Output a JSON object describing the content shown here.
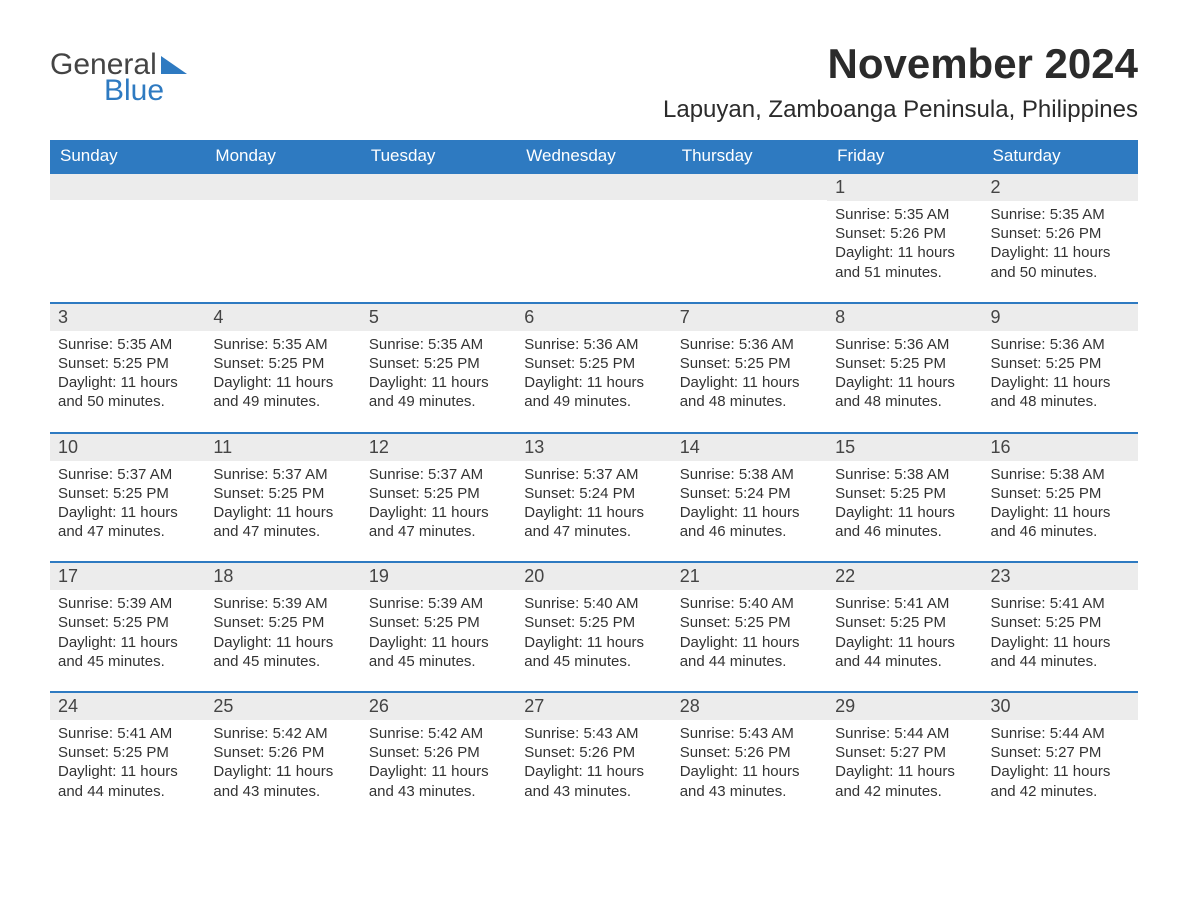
{
  "logo": {
    "text_top": "General",
    "text_bottom": "Blue",
    "brand_color": "#2e7ac1"
  },
  "header": {
    "month_title": "November 2024",
    "location": "Lapuyan, Zamboanga Peninsula, Philippines"
  },
  "calendar": {
    "header_bg": "#2e7ac1",
    "header_text_color": "#ffffff",
    "daynum_bg": "#ececec",
    "rule_color": "#2e7ac1",
    "text_color": "#333333",
    "body_fontsize": 15,
    "header_fontsize": 17,
    "title_fontsize": 42,
    "location_fontsize": 24,
    "days_of_week": [
      "Sunday",
      "Monday",
      "Tuesday",
      "Wednesday",
      "Thursday",
      "Friday",
      "Saturday"
    ],
    "weeks": [
      [
        {
          "day": null
        },
        {
          "day": null
        },
        {
          "day": null
        },
        {
          "day": null
        },
        {
          "day": null
        },
        {
          "day": 1,
          "sunrise": "5:35 AM",
          "sunset": "5:26 PM",
          "daylight": "11 hours and 51 minutes."
        },
        {
          "day": 2,
          "sunrise": "5:35 AM",
          "sunset": "5:26 PM",
          "daylight": "11 hours and 50 minutes."
        }
      ],
      [
        {
          "day": 3,
          "sunrise": "5:35 AM",
          "sunset": "5:25 PM",
          "daylight": "11 hours and 50 minutes."
        },
        {
          "day": 4,
          "sunrise": "5:35 AM",
          "sunset": "5:25 PM",
          "daylight": "11 hours and 49 minutes."
        },
        {
          "day": 5,
          "sunrise": "5:35 AM",
          "sunset": "5:25 PM",
          "daylight": "11 hours and 49 minutes."
        },
        {
          "day": 6,
          "sunrise": "5:36 AM",
          "sunset": "5:25 PM",
          "daylight": "11 hours and 49 minutes."
        },
        {
          "day": 7,
          "sunrise": "5:36 AM",
          "sunset": "5:25 PM",
          "daylight": "11 hours and 48 minutes."
        },
        {
          "day": 8,
          "sunrise": "5:36 AM",
          "sunset": "5:25 PM",
          "daylight": "11 hours and 48 minutes."
        },
        {
          "day": 9,
          "sunrise": "5:36 AM",
          "sunset": "5:25 PM",
          "daylight": "11 hours and 48 minutes."
        }
      ],
      [
        {
          "day": 10,
          "sunrise": "5:37 AM",
          "sunset": "5:25 PM",
          "daylight": "11 hours and 47 minutes."
        },
        {
          "day": 11,
          "sunrise": "5:37 AM",
          "sunset": "5:25 PM",
          "daylight": "11 hours and 47 minutes."
        },
        {
          "day": 12,
          "sunrise": "5:37 AM",
          "sunset": "5:25 PM",
          "daylight": "11 hours and 47 minutes."
        },
        {
          "day": 13,
          "sunrise": "5:37 AM",
          "sunset": "5:24 PM",
          "daylight": "11 hours and 47 minutes."
        },
        {
          "day": 14,
          "sunrise": "5:38 AM",
          "sunset": "5:24 PM",
          "daylight": "11 hours and 46 minutes."
        },
        {
          "day": 15,
          "sunrise": "5:38 AM",
          "sunset": "5:25 PM",
          "daylight": "11 hours and 46 minutes."
        },
        {
          "day": 16,
          "sunrise": "5:38 AM",
          "sunset": "5:25 PM",
          "daylight": "11 hours and 46 minutes."
        }
      ],
      [
        {
          "day": 17,
          "sunrise": "5:39 AM",
          "sunset": "5:25 PM",
          "daylight": "11 hours and 45 minutes."
        },
        {
          "day": 18,
          "sunrise": "5:39 AM",
          "sunset": "5:25 PM",
          "daylight": "11 hours and 45 minutes."
        },
        {
          "day": 19,
          "sunrise": "5:39 AM",
          "sunset": "5:25 PM",
          "daylight": "11 hours and 45 minutes."
        },
        {
          "day": 20,
          "sunrise": "5:40 AM",
          "sunset": "5:25 PM",
          "daylight": "11 hours and 45 minutes."
        },
        {
          "day": 21,
          "sunrise": "5:40 AM",
          "sunset": "5:25 PM",
          "daylight": "11 hours and 44 minutes."
        },
        {
          "day": 22,
          "sunrise": "5:41 AM",
          "sunset": "5:25 PM",
          "daylight": "11 hours and 44 minutes."
        },
        {
          "day": 23,
          "sunrise": "5:41 AM",
          "sunset": "5:25 PM",
          "daylight": "11 hours and 44 minutes."
        }
      ],
      [
        {
          "day": 24,
          "sunrise": "5:41 AM",
          "sunset": "5:25 PM",
          "daylight": "11 hours and 44 minutes."
        },
        {
          "day": 25,
          "sunrise": "5:42 AM",
          "sunset": "5:26 PM",
          "daylight": "11 hours and 43 minutes."
        },
        {
          "day": 26,
          "sunrise": "5:42 AM",
          "sunset": "5:26 PM",
          "daylight": "11 hours and 43 minutes."
        },
        {
          "day": 27,
          "sunrise": "5:43 AM",
          "sunset": "5:26 PM",
          "daylight": "11 hours and 43 minutes."
        },
        {
          "day": 28,
          "sunrise": "5:43 AM",
          "sunset": "5:26 PM",
          "daylight": "11 hours and 43 minutes."
        },
        {
          "day": 29,
          "sunrise": "5:44 AM",
          "sunset": "5:27 PM",
          "daylight": "11 hours and 42 minutes."
        },
        {
          "day": 30,
          "sunrise": "5:44 AM",
          "sunset": "5:27 PM",
          "daylight": "11 hours and 42 minutes."
        }
      ]
    ],
    "labels": {
      "sunrise_prefix": "Sunrise: ",
      "sunset_prefix": "Sunset: ",
      "daylight_prefix": "Daylight: "
    }
  }
}
